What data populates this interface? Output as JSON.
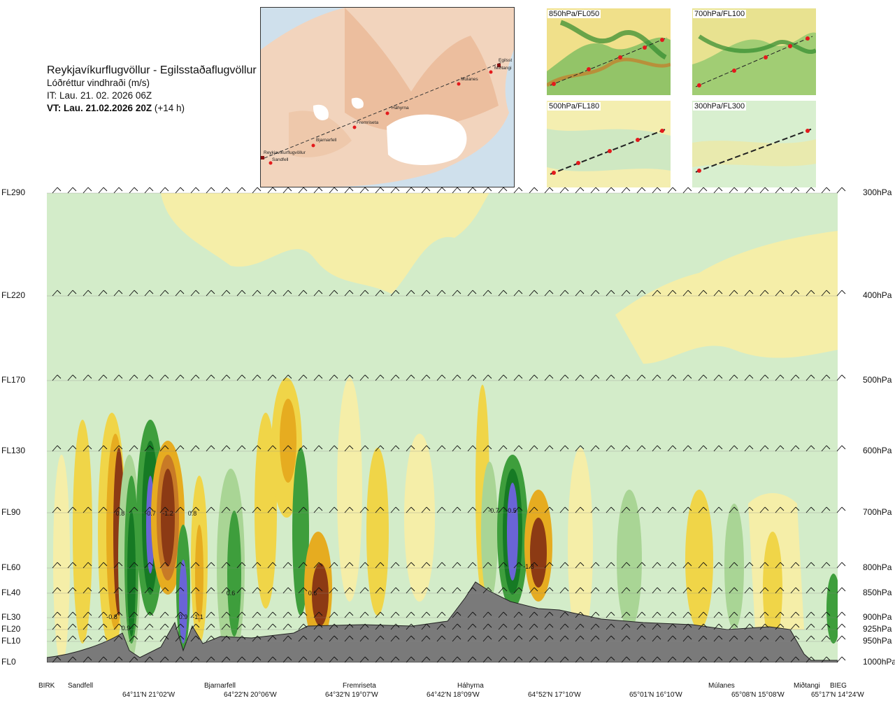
{
  "header": {
    "route": "Reykjavíkurflugvöllur - Egilsstaðaflugvöllur",
    "variable": "Lóðréttur vindhraði (m/s)",
    "issue_time": "IT: Lau. 21. 02. 2026 06Z",
    "valid_time_bold": "VT: Lau. 21.02.2026 20Z",
    "valid_offset": "(+14 h)"
  },
  "map": {
    "stations": [
      "Reykjavíkurflugvöllur",
      "Sandfell",
      "Bjarnarfell",
      "Fremriseta",
      "Háhyrna",
      "Múlanes",
      "Egilsst",
      "Miðtangi"
    ]
  },
  "thumbnails": [
    {
      "label": "850hPa/FL050"
    },
    {
      "label": "700hPa/FL100"
    },
    {
      "label": "500hPa/FL180"
    },
    {
      "label": "300hPa/FL300"
    }
  ],
  "chart_data": {
    "type": "heatmap",
    "levels_left": [
      "FL290",
      "FL220",
      "FL170",
      "FL130",
      "FL90",
      "FL60",
      "FL40",
      "FL30",
      "FL20",
      "FL10",
      "FL0"
    ],
    "levels_right": [
      "300hPa",
      "400hPa",
      "500hPa",
      "600hPa",
      "700hPa",
      "800hPa",
      "850hPa",
      "900hPa",
      "925hPa",
      "950hPa",
      "1000hPa"
    ],
    "x_labels_top": [
      "BIRK",
      "Sandfell",
      "Bjarnarfell",
      "Fremriseta",
      "Háhyrna",
      "Múlanes",
      "Miðtangi",
      "BIEG"
    ],
    "x_labels_bottom": [
      "64°11'N 21°02'W",
      "64°22'N 20°06'W",
      "64°32'N 19°07'W",
      "64°42'N 18°09'W",
      "64°52'N 17°10'W",
      "65°01'N 16°10'W",
      "65°08'N 15°08'W",
      "65°17'N 14°24'W"
    ],
    "annotations": [
      "0.8",
      "-0.7",
      "-1.2",
      "0.9",
      "0.8",
      "0.9",
      "-1.1",
      "0.6",
      "0.6",
      "-0.7",
      "-0.5",
      "-1.3",
      "-0.8"
    ],
    "colors": {
      "up_weak": "#f5eea8",
      "up_mid": "#f0d548",
      "up_strong": "#e6ac20",
      "up_stronger": "#c87a26",
      "up_max": "#8c3a14",
      "down_weak": "#d3ecc9",
      "down_mid": "#a9d595",
      "down_strong": "#3e9e3c",
      "down_stronger": "#167a24",
      "down_max": "#6a64d6",
      "terrain": "#7a7a7a"
    }
  }
}
